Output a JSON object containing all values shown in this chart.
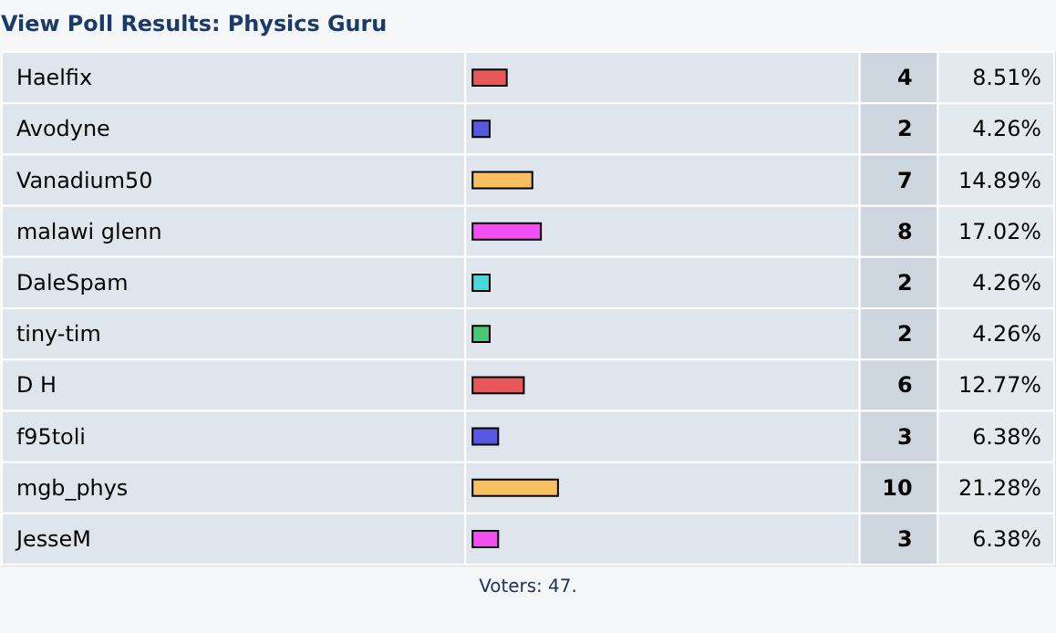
{
  "chart_data": {
    "type": "bar",
    "orientation": "horizontal",
    "title": "View Poll Results: Physics Guru",
    "categories": [
      "Haelfix",
      "Avodyne",
      "Vanadium50",
      "malawi glenn",
      "DaleSpam",
      "tiny-tim",
      "D H",
      "f95toli",
      "mgb_phys",
      "JesseM"
    ],
    "values": [
      8.51,
      4.26,
      14.89,
      17.02,
      4.26,
      4.26,
      12.77,
      6.38,
      21.28,
      6.38
    ],
    "colors": [
      "#e85858",
      "#5858e0",
      "#f8c060",
      "#f050f0",
      "#48d8d8",
      "#48c878",
      "#e85858",
      "#5858e0",
      "#f8c060",
      "#f050f0"
    ],
    "value_labels": [
      "8.51%",
      "4.26%",
      "14.89%",
      "17.02%",
      "4.26%",
      "4.26%",
      "12.77%",
      "6.38%",
      "21.28%",
      "6.38%"
    ],
    "annotations": [
      "4",
      "2",
      "7",
      "8",
      "2",
      "2",
      "6",
      "3",
      "10",
      "3",
      "Voters: 47."
    ]
  }
}
